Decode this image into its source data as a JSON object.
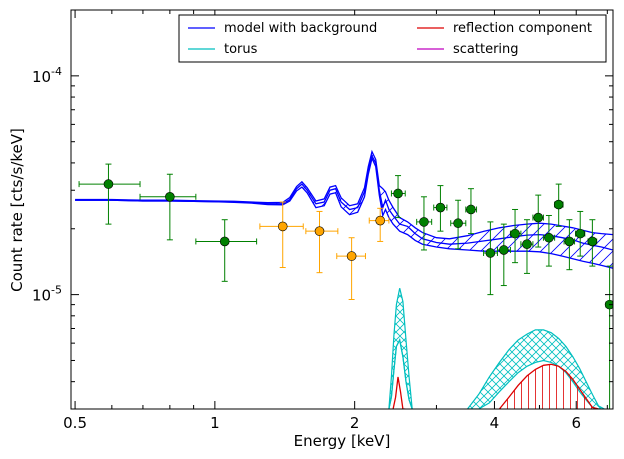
{
  "chart_data": {
    "type": "scatter",
    "xlabel": "Energy [keV]",
    "ylabel": "Count rate [cts/s/keV]",
    "xscale": "log",
    "yscale": "log",
    "xlim": [
      0.49,
      7.2
    ],
    "ylim": [
      3e-06,
      0.0002
    ],
    "x_ticks": [
      {
        "value": 0.5,
        "label": "0.5"
      },
      {
        "value": 1,
        "label": "1"
      },
      {
        "value": 2,
        "label": "2"
      },
      {
        "value": 4,
        "label": "4"
      },
      {
        "value": 6,
        "label": "6"
      }
    ],
    "y_ticks": [
      {
        "value": 1e-05,
        "mantissa": "10",
        "exponent": "-5"
      },
      {
        "value": 0.0001,
        "mantissa": "10",
        "exponent": "-4"
      }
    ],
    "legend": {
      "placement": "top-right",
      "entries": [
        {
          "label": "model with background",
          "color": "#0000ff"
        },
        {
          "label": "reflection component",
          "color": "#dd0000"
        },
        {
          "label": "torus",
          "color": "#00bfbf"
        },
        {
          "label": "scattering",
          "color": "#bf00bf"
        }
      ]
    },
    "series": [
      {
        "kind": "data-green",
        "color": "#008000",
        "ecolor": "#008000",
        "points": [
          {
            "x": 0.59,
            "y": 3.2e-05,
            "xlo": 0.51,
            "xhi": 0.69,
            "ylo": 2.1e-05,
            "yhi": 3.95e-05
          },
          {
            "x": 0.8,
            "y": 2.8e-05,
            "xlo": 0.69,
            "xhi": 0.91,
            "ylo": 1.78e-05,
            "yhi": 3.55e-05
          },
          {
            "x": 1.05,
            "y": 1.75e-05,
            "xlo": 0.91,
            "xhi": 1.23,
            "ylo": 1.15e-05,
            "yhi": 2.2e-05
          },
          {
            "x": 2.48,
            "y": 2.9e-05,
            "xlo": 2.4,
            "xhi": 2.57,
            "ylo": 2.25e-05,
            "yhi": 3.5e-05
          },
          {
            "x": 2.82,
            "y": 2.15e-05,
            "xlo": 2.72,
            "xhi": 2.93,
            "ylo": 1.6e-05,
            "yhi": 2.8e-05
          },
          {
            "x": 3.06,
            "y": 2.5e-05,
            "xlo": 2.96,
            "xhi": 3.16,
            "ylo": 1.95e-05,
            "yhi": 3.15e-05
          },
          {
            "x": 3.34,
            "y": 2.12e-05,
            "xlo": 3.22,
            "xhi": 3.47,
            "ylo": 1.62e-05,
            "yhi": 2.7e-05
          },
          {
            "x": 3.56,
            "y": 2.45e-05,
            "xlo": 3.47,
            "xhi": 3.66,
            "ylo": 1.9e-05,
            "yhi": 3.05e-05
          },
          {
            "x": 3.92,
            "y": 1.55e-05,
            "xlo": 3.79,
            "xhi": 4.06,
            "ylo": 1e-05,
            "yhi": 2.15e-05
          },
          {
            "x": 4.19,
            "y": 1.6e-05,
            "xlo": 4.06,
            "xhi": 4.33,
            "ylo": 1.1e-05,
            "yhi": 2.1e-05
          },
          {
            "x": 4.43,
            "y": 1.9e-05,
            "xlo": 4.33,
            "xhi": 4.56,
            "ylo": 1.4e-05,
            "yhi": 2.45e-05
          },
          {
            "x": 4.7,
            "y": 1.7e-05,
            "xlo": 4.56,
            "xhi": 4.84,
            "ylo": 1.25e-05,
            "yhi": 2.2e-05
          },
          {
            "x": 4.97,
            "y": 2.25e-05,
            "xlo": 4.84,
            "xhi": 5.1,
            "ylo": 1.65e-05,
            "yhi": 2.85e-05
          },
          {
            "x": 5.24,
            "y": 1.82e-05,
            "xlo": 5.1,
            "xhi": 5.39,
            "ylo": 1.35e-05,
            "yhi": 2.3e-05
          },
          {
            "x": 5.5,
            "y": 2.58e-05,
            "xlo": 5.39,
            "xhi": 5.62,
            "ylo": 2.05e-05,
            "yhi": 3.2e-05
          },
          {
            "x": 5.8,
            "y": 1.75e-05,
            "xlo": 5.65,
            "xhi": 5.95,
            "ylo": 1.3e-05,
            "yhi": 2.2e-05
          },
          {
            "x": 6.12,
            "y": 1.9e-05,
            "xlo": 5.98,
            "xhi": 6.26,
            "ylo": 1.5e-05,
            "yhi": 2.4e-05
          },
          {
            "x": 6.5,
            "y": 1.75e-05,
            "xlo": 6.36,
            "xhi": 6.64,
            "ylo": 1.35e-05,
            "yhi": 2.2e-05
          },
          {
            "x": 7.08,
            "y": 9e-06,
            "xlo": 6.95,
            "xhi": 7.2,
            "ylo": 3e-06,
            "yhi": 1.35e-05
          }
        ]
      },
      {
        "kind": "data-orange",
        "color": "#ffa500",
        "ecolor": "#ffa500",
        "points": [
          {
            "x": 1.4,
            "y": 2.05e-05,
            "xlo": 1.25,
            "xhi": 1.55,
            "ylo": 1.33e-05,
            "yhi": 2.65e-05
          },
          {
            "x": 1.68,
            "y": 1.95e-05,
            "xlo": 1.57,
            "xhi": 1.84,
            "ylo": 1.26e-05,
            "yhi": 2.4e-05
          },
          {
            "x": 1.97,
            "y": 1.5e-05,
            "xlo": 1.83,
            "xhi": 2.11,
            "ylo": 9.5e-06,
            "yhi": 1.82e-05
          },
          {
            "x": 2.27,
            "y": 2.18e-05,
            "xlo": 2.15,
            "xhi": 2.37,
            "ylo": 1.75e-05,
            "yhi": 2.48e-05
          }
        ]
      }
    ],
    "model_curve": {
      "x": [
        0.5,
        0.6,
        0.7,
        0.8,
        0.9,
        1.0,
        1.1,
        1.2,
        1.3,
        1.4,
        1.45,
        1.5,
        1.54,
        1.58,
        1.65,
        1.72,
        1.77,
        1.82,
        1.87,
        1.95,
        2.03,
        2.1,
        2.14,
        2.18,
        2.22,
        2.26,
        2.3,
        2.33,
        2.37,
        2.42,
        2.5,
        2.6,
        2.7,
        2.8,
        3.0,
        3.2,
        3.5,
        3.8,
        4.1,
        4.4,
        4.7,
        5.0,
        5.3,
        5.6,
        5.9,
        6.2,
        6.5,
        6.8,
        7.2
      ],
      "mid": [
        2.7e-05,
        2.7e-05,
        2.68e-05,
        2.68e-05,
        2.67e-05,
        2.66e-05,
        2.65e-05,
        2.63e-05,
        2.6e-05,
        2.6e-05,
        2.72e-05,
        3.05e-05,
        3.2e-05,
        3e-05,
        2.6e-05,
        2.65e-05,
        3e-05,
        3.05e-05,
        2.65e-05,
        2.45e-05,
        2.5e-05,
        2.95e-05,
        3.7e-05,
        4.3e-05,
        4e-05,
        3e-05,
        2.5e-05,
        2.7e-05,
        2.45e-05,
        2.3e-05,
        2.1e-05,
        2.05e-05,
        1.9e-05,
        1.8e-05,
        1.73e-05,
        1.7e-05,
        1.72e-05,
        1.76e-05,
        1.8e-05,
        1.84e-05,
        1.87e-05,
        1.88e-05,
        1.86e-05,
        1.82e-05,
        1.78e-05,
        1.72e-05,
        1.68e-05,
        1.65e-05,
        1.6e-05
      ],
      "lo": [
        2.7e-05,
        2.7e-05,
        2.68e-05,
        2.68e-05,
        2.67e-05,
        2.66e-05,
        2.64e-05,
        2.62e-05,
        2.58e-05,
        2.57e-05,
        2.68e-05,
        2.98e-05,
        3.1e-05,
        2.92e-05,
        2.5e-05,
        2.55e-05,
        2.88e-05,
        2.92e-05,
        2.52e-05,
        2.32e-05,
        2.38e-05,
        2.8e-05,
        3.55e-05,
        4.2e-05,
        3.85e-05,
        2.85e-05,
        2.3e-05,
        2.45e-05,
        2.25e-05,
        2.1e-05,
        1.95e-05,
        1.88e-05,
        1.77e-05,
        1.7e-05,
        1.65e-05,
        1.62e-05,
        1.6e-05,
        1.58e-05,
        1.58e-05,
        1.58e-05,
        1.58e-05,
        1.57e-05,
        1.54e-05,
        1.5e-05,
        1.46e-05,
        1.42e-05,
        1.39e-05,
        1.36e-05,
        1.32e-05
      ],
      "hi": [
        2.72e-05,
        2.72e-05,
        2.7e-05,
        2.7e-05,
        2.69e-05,
        2.68e-05,
        2.67e-05,
        2.65e-05,
        2.63e-05,
        2.64e-05,
        2.78e-05,
        3.12e-05,
        3.28e-05,
        3.08e-05,
        2.68e-05,
        2.74e-05,
        3.1e-05,
        3.15e-05,
        2.77e-05,
        2.55e-05,
        2.6e-05,
        3.08e-05,
        3.85e-05,
        4.5e-05,
        4.15e-05,
        3.15e-05,
        3.05e-05,
        2.95e-05,
        2.7e-05,
        2.5e-05,
        2.25e-05,
        2.15e-05,
        2.02e-05,
        1.92e-05,
        1.82e-05,
        1.8e-05,
        1.86e-05,
        1.95e-05,
        2.02e-05,
        2.07e-05,
        2.1e-05,
        2.12e-05,
        2.1e-05,
        2.06e-05,
        2.02e-05,
        1.97e-05,
        1.92e-05,
        1.9e-05,
        1.88e-05
      ]
    },
    "torus_peaks": [
      {
        "x": [
          2.37,
          2.4,
          2.43,
          2.46,
          2.5,
          2.54,
          2.58,
          2.62,
          2.66
        ],
        "lo": [
          3e-06,
          3.4e-06,
          4.5e-06,
          5.8e-06,
          6.2e-06,
          5.2e-06,
          4e-06,
          3.3e-06,
          3e-06
        ],
        "hi": [
          3e-06,
          4.2e-06,
          6.5e-06,
          9e-06,
          1.07e-05,
          9.3e-06,
          6.2e-06,
          4.2e-06,
          3e-06
        ]
      }
    ],
    "torus_hump": {
      "x": [
        3.5,
        3.7,
        3.9,
        4.1,
        4.3,
        4.5,
        4.7,
        4.9,
        5.1,
        5.3,
        5.5,
        5.7,
        5.9,
        6.1,
        6.3,
        6.5,
        6.7,
        6.9
      ],
      "lo": [
        3e-06,
        3e-06,
        3.2e-06,
        3.6e-06,
        4e-06,
        4.4e-06,
        4.7e-06,
        4.9e-06,
        5e-06,
        4.9e-06,
        4.7e-06,
        4.4e-06,
        4e-06,
        3.6e-06,
        3.3e-06,
        3.05e-06,
        3e-06,
        3e-06
      ],
      "hi": [
        3e-06,
        3.5e-06,
        4.2e-06,
        4.9e-06,
        5.6e-06,
        6.2e-06,
        6.6e-06,
        6.9e-06,
        6.9e-06,
        6.7e-06,
        6.3e-06,
        5.8e-06,
        5.2e-06,
        4.6e-06,
        4e-06,
        3.5e-06,
        3.1e-06,
        3e-06
      ]
    },
    "reflection_peak": {
      "x": [
        2.42,
        2.45,
        2.48,
        2.51,
        2.54,
        2.57
      ],
      "y": [
        3e-06,
        3.4e-06,
        4.2e-06,
        3.6e-06,
        3e-06,
        3e-06
      ]
    },
    "reflection_hump": {
      "x": [
        4.1,
        4.3,
        4.5,
        4.7,
        4.9,
        5.1,
        5.3,
        5.5,
        5.7,
        5.9,
        6.1,
        6.3,
        6.5,
        6.7
      ],
      "y": [
        3e-06,
        3.4e-06,
        3.85e-06,
        4.25e-06,
        4.55e-06,
        4.75e-06,
        4.8e-06,
        4.7e-06,
        4.45e-06,
        4.1e-06,
        3.7e-06,
        3.35e-06,
        3.05e-06,
        3e-06
      ]
    }
  }
}
